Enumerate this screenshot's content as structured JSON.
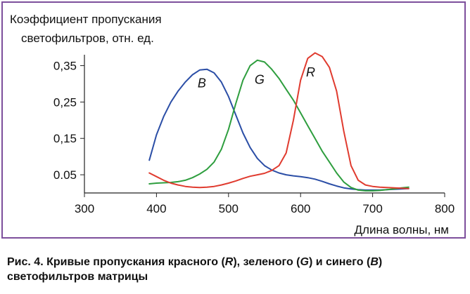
{
  "figure": {
    "caption": {
      "prefix": "Рис. 4. Кривые пропускания красного (",
      "r": "R",
      "mid1": "), зеленого (",
      "g": "G",
      "mid2": ") и синего (",
      "b": "B",
      "suffix": ")",
      "line2": "светофильтров матрицы"
    }
  },
  "chart_data": {
    "type": "line",
    "title": "",
    "ylabel_line1": "Коэффициент пропускания",
    "ylabel_line2": "светофильтров, отн. ед.",
    "xlabel": "Длина волны, нм",
    "xlim": [
      300,
      800
    ],
    "ylim": [
      0,
      0.38
    ],
    "x_ticks": [
      "300",
      "400",
      "500",
      "600",
      "700",
      "800"
    ],
    "x_tick_values": [
      300,
      400,
      500,
      600,
      700,
      800
    ],
    "y_ticks": [
      "0.05",
      "0,15",
      "0,25",
      "0,35"
    ],
    "y_tick_values": [
      0.05,
      0.15,
      0.25,
      0.35
    ],
    "grid": false,
    "series": [
      {
        "name": "B",
        "color": "#2b4ea6",
        "label_pos": [
          463,
          0.29
        ],
        "x": [
          390,
          400,
          410,
          420,
          430,
          440,
          450,
          460,
          470,
          480,
          490,
          500,
          510,
          520,
          530,
          540,
          550,
          560,
          570,
          580,
          590,
          600,
          610,
          620,
          630,
          640,
          650,
          660,
          670,
          680,
          690,
          700,
          710,
          720,
          730,
          740,
          750
        ],
        "values": [
          0.09,
          0.16,
          0.21,
          0.25,
          0.28,
          0.305,
          0.325,
          0.338,
          0.34,
          0.33,
          0.305,
          0.265,
          0.215,
          0.165,
          0.125,
          0.095,
          0.075,
          0.063,
          0.055,
          0.05,
          0.047,
          0.045,
          0.042,
          0.038,
          0.032,
          0.025,
          0.019,
          0.014,
          0.011,
          0.009,
          0.008,
          0.008,
          0.008,
          0.009,
          0.01,
          0.011,
          0.012
        ]
      },
      {
        "name": "G",
        "color": "#2e9e3e",
        "label_pos": [
          543,
          0.3
        ],
        "x": [
          390,
          400,
          410,
          420,
          430,
          440,
          450,
          460,
          470,
          480,
          490,
          500,
          510,
          520,
          530,
          540,
          550,
          560,
          570,
          580,
          590,
          600,
          610,
          620,
          630,
          640,
          650,
          660,
          670,
          680,
          690,
          700,
          710,
          720,
          730,
          740,
          750
        ],
        "values": [
          0.025,
          0.027,
          0.028,
          0.029,
          0.031,
          0.035,
          0.042,
          0.052,
          0.065,
          0.085,
          0.12,
          0.175,
          0.245,
          0.31,
          0.35,
          0.365,
          0.36,
          0.34,
          0.315,
          0.285,
          0.255,
          0.22,
          0.185,
          0.15,
          0.115,
          0.085,
          0.055,
          0.03,
          0.015,
          0.008,
          0.006,
          0.006,
          0.007,
          0.009,
          0.011,
          0.014,
          0.016
        ]
      },
      {
        "name": "R",
        "color": "#e03b2f",
        "label_pos": [
          614,
          0.32
        ],
        "x": [
          390,
          400,
          410,
          420,
          430,
          440,
          450,
          460,
          470,
          480,
          490,
          500,
          510,
          520,
          530,
          540,
          550,
          560,
          570,
          580,
          590,
          600,
          610,
          620,
          630,
          640,
          650,
          660,
          670,
          680,
          690,
          700,
          710,
          720,
          730,
          740,
          750
        ],
        "values": [
          0.055,
          0.045,
          0.035,
          0.027,
          0.022,
          0.018,
          0.016,
          0.015,
          0.016,
          0.018,
          0.022,
          0.027,
          0.033,
          0.04,
          0.046,
          0.05,
          0.054,
          0.062,
          0.075,
          0.11,
          0.2,
          0.31,
          0.37,
          0.385,
          0.375,
          0.345,
          0.28,
          0.17,
          0.075,
          0.035,
          0.022,
          0.018,
          0.016,
          0.015,
          0.014,
          0.013,
          0.012
        ]
      }
    ]
  }
}
